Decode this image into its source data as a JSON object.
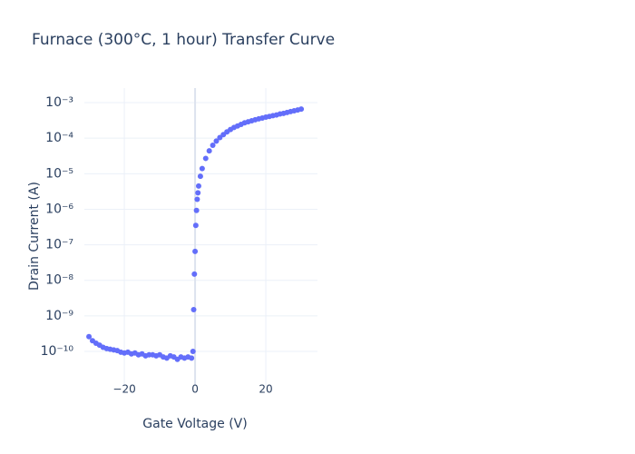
{
  "chart_data": {
    "type": "scatter",
    "title": "Furnace (300°C, 1 hour) Transfer Curve",
    "x_label": "Gate Voltage (V)",
    "y_label": "Drain Current (A)",
    "log_y": true,
    "grid": true,
    "color": "#636efa",
    "xlim": [
      -31.3,
      34.6
    ],
    "ylim": [
      1.07e-11,
      0.00257
    ],
    "xticks": [
      {
        "value": -20,
        "label": "−20"
      },
      0,
      20
    ],
    "yticks": [
      {
        "value": 1e-10,
        "label": "10⁻¹⁰"
      },
      {
        "value": 1e-09,
        "label": "10⁻⁹"
      },
      {
        "value": 1e-08,
        "label": "10⁻⁸"
      },
      {
        "value": 1e-07,
        "label": "10⁻⁷"
      },
      {
        "value": 1e-06,
        "label": "10⁻⁶"
      },
      {
        "value": 1e-05,
        "label": "10⁻⁵"
      },
      {
        "value": 0.0001,
        "label": "10⁻⁴"
      },
      {
        "value": 0.001,
        "label": "10⁻³"
      }
    ],
    "x": [
      -30,
      -29,
      -28,
      -27,
      -26,
      -25,
      -24,
      -23,
      -22,
      -21,
      -20,
      -19,
      -18,
      -17,
      -16,
      -15,
      -14,
      -13,
      -12,
      -11,
      -10,
      -9,
      -8,
      -7,
      -6,
      -5,
      -4,
      -3,
      -2,
      -1,
      -0.6,
      -0.4,
      -0.2,
      0,
      0.2,
      0.4,
      0.6,
      0.8,
      1,
      1.5,
      2,
      3,
      4,
      5,
      6,
      7,
      8,
      9,
      10,
      11,
      12,
      13,
      14,
      15,
      16,
      17,
      18,
      19,
      20,
      21,
      22,
      23,
      24,
      25,
      26,
      27,
      28,
      29,
      30
    ],
    "values": [
      2.6e-10,
      2e-10,
      1.7e-10,
      1.5e-10,
      1.3e-10,
      1.2e-10,
      1.15e-10,
      1.1e-10,
      1.05e-10,
      9.5e-11,
      9e-11,
      9.5e-11,
      8.5e-11,
      9e-11,
      8e-11,
      8.5e-11,
      7.5e-11,
      8e-11,
      8e-11,
      7.5e-11,
      8e-11,
      7e-11,
      6.5e-11,
      7.5e-11,
      7e-11,
      6e-11,
      7e-11,
      6.5e-11,
      7e-11,
      6.5e-11,
      1e-10,
      1.5e-09,
      1.5e-08,
      6.5e-08,
      3.5e-07,
      9.3e-07,
      1.9e-06,
      2.9e-06,
      4.5e-06,
      8.5e-06,
      1.4e-05,
      2.7e-05,
      4.4e-05,
      6.3e-05,
      8.3e-05,
      0.000104,
      0.000126,
      0.00015,
      0.000175,
      0.0002,
      0.00022,
      0.000245,
      0.00027,
      0.00029,
      0.00031,
      0.00033,
      0.00035,
      0.00037,
      0.00039,
      0.00041,
      0.00043,
      0.00045,
      0.00048,
      0.0005,
      0.00053,
      0.00056,
      0.00059,
      0.00062,
      0.00066
    ]
  }
}
